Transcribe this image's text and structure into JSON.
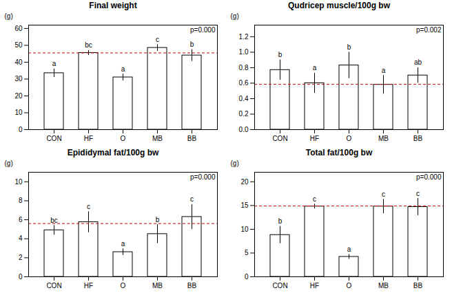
{
  "chart_data": [
    {
      "type": "bar",
      "title": "Final weight",
      "ylabel": "(g)",
      "annotations": [
        "p=0.000"
      ],
      "categories": [
        "CON",
        "HF",
        "O",
        "MB",
        "BB"
      ],
      "values": [
        33.5,
        45.5,
        31.0,
        48.5,
        44.0
      ],
      "errors": [
        2.5,
        1.5,
        2.0,
        2.0,
        3.5
      ],
      "letters": [
        "a",
        "bc",
        "a",
        "c",
        "b"
      ],
      "hline": {
        "value": 45.5,
        "color": "#cc0000",
        "line_style": "dashed"
      },
      "color": "white",
      "ylim": [
        0,
        62
      ],
      "yticks": [
        0,
        10,
        20,
        30,
        40,
        50,
        60
      ],
      "grid": false
    },
    {
      "type": "bar",
      "title": "Qudricep muscle/100g bw",
      "ylabel": "(g)",
      "annotations": [
        "p=0.002"
      ],
      "categories": [
        "CON",
        "HF",
        "O",
        "MB",
        "BB"
      ],
      "values": [
        0.77,
        0.6,
        0.83,
        0.58,
        0.7
      ],
      "errors": [
        0.13,
        0.13,
        0.17,
        0.12,
        0.1
      ],
      "letters": [
        "b",
        "a",
        "b",
        "a",
        "ab"
      ],
      "hline": {
        "value": 0.585,
        "color": "#cc0000",
        "line_style": "dashed"
      },
      "color": "white",
      "ylim": [
        0,
        1.35
      ],
      "yticks": [
        {
          "value": 0,
          "label": "0.0"
        },
        0.2,
        0.4,
        0.6,
        0.8,
        {
          "value": 1.0,
          "label": "1.0"
        },
        1.2
      ],
      "grid": false
    },
    {
      "type": "bar",
      "title": "Epididymal fat/100g bw",
      "ylabel": "(g)",
      "annotations": [
        "p=0.000"
      ],
      "categories": [
        "CON",
        "HF",
        "O",
        "MB",
        "BB"
      ],
      "values": [
        4.9,
        5.75,
        2.6,
        4.5,
        6.3
      ],
      "errors": [
        0.5,
        1.1,
        0.35,
        1.0,
        1.3
      ],
      "letters": [
        "bc",
        "c",
        "a",
        "b",
        "c"
      ],
      "hline": {
        "value": 5.6,
        "color": "#cc0000",
        "line_style": "dashed"
      },
      "color": "white",
      "ylim": [
        0,
        11
      ],
      "yticks": [
        0,
        2,
        4,
        6,
        8,
        10
      ],
      "grid": false
    },
    {
      "type": "bar",
      "title": "Total fat/100g bw",
      "ylabel": "(g)",
      "annotations": [
        "p=0.000"
      ],
      "categories": [
        "CON",
        "HF",
        "O",
        "MB",
        "BB"
      ],
      "values": [
        8.8,
        14.8,
        4.2,
        14.8,
        14.7
      ],
      "errors": [
        1.8,
        0.5,
        0.5,
        1.5,
        1.8
      ],
      "letters": [
        "b",
        "c",
        "a",
        "c",
        "c"
      ],
      "hline": {
        "value": 14.9,
        "color": "#cc0000",
        "line_style": "dashed"
      },
      "color": "white",
      "ylim": [
        0,
        22
      ],
      "yticks": [
        0,
        5,
        10,
        15,
        20
      ],
      "grid": false
    }
  ]
}
